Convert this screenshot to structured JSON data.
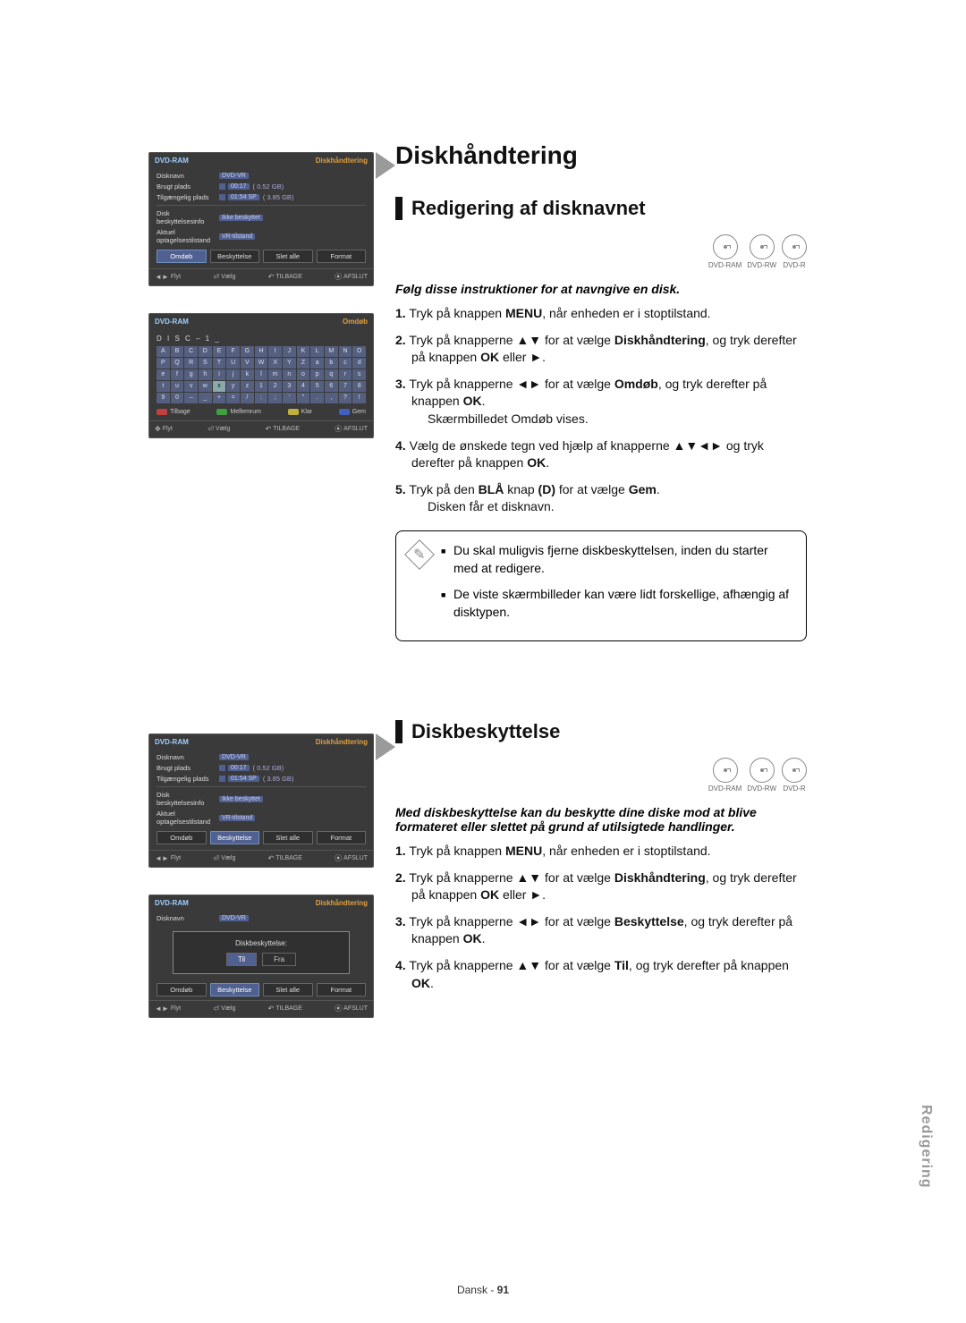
{
  "page": {
    "title": "Diskhåndtering",
    "footer_lang": "Dansk",
    "footer_page": "91",
    "side_tab": "Redigering"
  },
  "screens": {
    "manager": {
      "header_left": "DVD-RAM",
      "header_right": "Diskhåndtering",
      "rows": {
        "name_label": "Disknavn",
        "name_mode": "DVD-VR",
        "used_label": "Brugt plads",
        "used_time": "00:17",
        "used_size": "0.52 GB",
        "avail_label": "Tilgængelig plads",
        "avail_time": "01:54 SP",
        "avail_size": "3.85 GB",
        "prot_label": "Disk beskyttelsesinfo",
        "prot_val": "Ikke beskyttet",
        "rec_label": "Aktuel optagelsestilstand",
        "rec_val": "VR-tilstand"
      },
      "buttons": {
        "b1": "Omdøb",
        "b2": "Beskyttelse",
        "b3": "Slet alle",
        "b4": "Format"
      },
      "footer": {
        "move": "Flyt",
        "select": "Vælg",
        "back": "TILBAGE",
        "exit": "AFSLUT"
      }
    },
    "rename": {
      "header_left": "DVD-RAM",
      "header_right": "Omdøb",
      "title": "D I S C – 1 _",
      "keys_row1": [
        "A",
        "B",
        "C",
        "D",
        "E",
        "F",
        "G",
        "H",
        "I",
        "J",
        "K",
        "L",
        "M",
        "N",
        "O"
      ],
      "keys_row2": [
        "P",
        "Q",
        "R",
        "S",
        "T",
        "U",
        "V",
        "W",
        "X",
        "Y",
        "Z",
        "a",
        "b",
        "c",
        "d"
      ],
      "keys_row3": [
        "e",
        "f",
        "g",
        "h",
        "i",
        "j",
        "k",
        "l",
        "m",
        "n",
        "o",
        "p",
        "q",
        "r",
        "s"
      ],
      "keys_row4": [
        "t",
        "u",
        "v",
        "w",
        "x",
        "y",
        "z",
        "1",
        "2",
        "3",
        "4",
        "5",
        "6",
        "7",
        "8"
      ],
      "keys_row5": [
        "9",
        "0",
        "–",
        "_",
        "+",
        "=",
        "/",
        ":",
        ";",
        "'",
        "\"",
        ".",
        ",",
        "?",
        "!"
      ],
      "color_buttons": {
        "red": "Tilbage",
        "green": "Mellemrum",
        "yellow": "Klar",
        "blue": "Gem"
      },
      "footer": {
        "move": "Flyt",
        "select": "Vælg",
        "back": "TILBAGE",
        "exit": "AFSLUT"
      }
    },
    "protection_dialog": {
      "header_left": "DVD-RAM",
      "header_right": "Diskhåndtering",
      "name_label": "Disknavn",
      "name_mode": "DVD-VR",
      "label": "Diskbeskyttelse:",
      "opt_on": "Til",
      "opt_off": "Fra",
      "buttons": {
        "b1": "Omdøb",
        "b2": "Beskyttelse",
        "b3": "Slet alle",
        "b4": "Format"
      },
      "footer": {
        "move": "Flyt",
        "select": "Vælg",
        "back": "TILBAGE",
        "exit": "AFSLUT"
      }
    }
  },
  "section_edit_name": {
    "heading": "Redigering af disknavnet",
    "disc_labels": [
      "DVD-RAM",
      "DVD-RW",
      "DVD-R"
    ],
    "intro": "Følg disse instruktioner for at navngive en disk.",
    "steps": [
      {
        "n": "1.",
        "t": "Tryk på knappen <b>MENU</b>, når enheden er i stoptilstand."
      },
      {
        "n": "2.",
        "t": "Tryk på knapperne ▲▼ for at vælge <b>Diskhåndtering</b>, og tryk derefter på knappen <b>OK</b> eller ►."
      },
      {
        "n": "3.",
        "t": "Tryk på knapperne ◄► for at vælge <b>Omdøb</b>, og tryk derefter på knappen <b>OK</b>.",
        "s": "Skærmbilledet Omdøb vises."
      },
      {
        "n": "4.",
        "t": "Vælg de ønskede tegn ved hjælp af knapperne ▲▼◄► og tryk derefter på knappen <b>OK</b>."
      },
      {
        "n": "5.",
        "t": "Tryk på den <b>BLÅ</b> knap <b>(D)</b> for at vælge <b>Gem</b>.",
        "s": "Disken får et disknavn."
      }
    ],
    "notes": [
      "Du skal muligvis fjerne diskbeskyttelsen, inden du starter med at redigere.",
      "De viste skærmbilleder kan være lidt forskellige, afhængig af disktypen."
    ]
  },
  "section_protection": {
    "heading": "Diskbeskyttelse",
    "disc_labels": [
      "DVD-RAM",
      "DVD-RW",
      "DVD-R"
    ],
    "intro": "Med diskbeskyttelse kan du beskytte dine diske mod at blive formateret eller slettet på grund af utilsigtede handlinger.",
    "steps": [
      {
        "n": "1.",
        "t": "Tryk på knappen <b>MENU</b>, når enheden er i stoptilstand."
      },
      {
        "n": "2.",
        "t": "Tryk på knapperne ▲▼ for at vælge <b>Diskhåndtering</b>, og tryk derefter på knappen <b>OK</b> eller ►."
      },
      {
        "n": "3.",
        "t": "Tryk på knapperne ◄► for at vælge <b>Beskyttelse</b>, og tryk derefter på knappen <b>OK</b>."
      },
      {
        "n": "4.",
        "t": "Tryk på knapperne ▲▼ for at vælge <b>Til</b>, og tryk derefter på knappen <b>OK</b>."
      }
    ]
  }
}
